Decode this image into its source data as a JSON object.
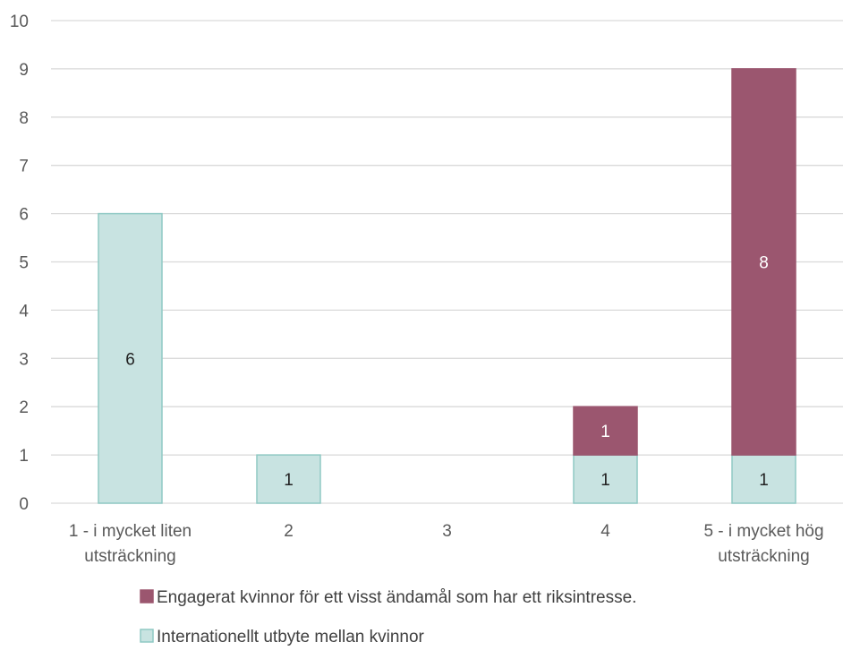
{
  "chart_data": {
    "type": "bar",
    "stacked": true,
    "title": "",
    "xlabel": "",
    "ylabel": "",
    "categories": [
      [
        "1 - i mycket liten",
        "utsträckning"
      ],
      [
        "2"
      ],
      [
        "3"
      ],
      [
        "4"
      ],
      [
        "5 - i mycket hög",
        "utsträckning"
      ]
    ],
    "ylim": [
      0,
      10
    ],
    "yticks": [
      0,
      1,
      2,
      3,
      4,
      5,
      6,
      7,
      8,
      9,
      10
    ],
    "grid": true,
    "legend_position": "bottom",
    "series": [
      {
        "name": "Internationellt utbyte mellan kvinnor",
        "values": [
          6,
          1,
          0,
          1,
          1
        ],
        "fill": "#c8e3e1",
        "stroke": "#8fc9c4",
        "label_color": "#222222"
      },
      {
        "name": "Engagerat kvinnor för ett visst ändamål som har ett riksintresse.",
        "values": [
          0,
          0,
          0,
          1,
          8
        ],
        "fill": "#9b566f",
        "stroke": "#9b566f",
        "label_color": "#ffffff"
      }
    ],
    "legend_order": [
      1,
      0
    ]
  },
  "colors": {
    "gridline": "#d9d9d9",
    "axis_text": "#595959",
    "legend_text": "#404040"
  }
}
